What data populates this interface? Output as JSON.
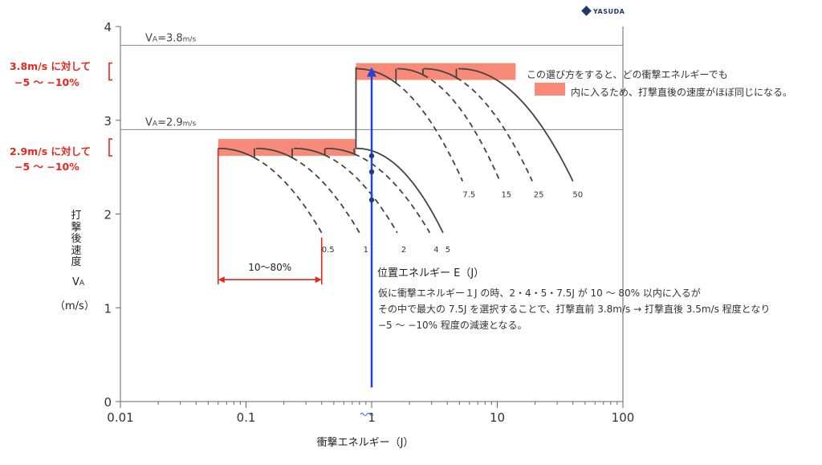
{
  "logo": {
    "text": "YASUDA"
  },
  "chart_data": {
    "type": "line",
    "title": "",
    "xlabel": "衝撃エネルギー（J）",
    "ylabel_vertical": "打撃後速度",
    "ylabel_symbol_main": "V",
    "ylabel_symbol_sub": "A",
    "ylabel_unit": "（m/s）",
    "x_scale": "log",
    "xlim": [
      0.01,
      100
    ],
    "ylim": [
      0,
      4
    ],
    "x_ticks": [
      {
        "value": 0.01,
        "label": "0.01"
      },
      {
        "value": 0.1,
        "label": "0.1"
      },
      {
        "value": 1,
        "label": "1"
      },
      {
        "value": 10,
        "label": "10"
      },
      {
        "value": 100,
        "label": "100"
      }
    ],
    "y_ticks": [
      0,
      1,
      2,
      3,
      4
    ],
    "reference_lines": [
      {
        "y": 3.8,
        "label_main": "V",
        "label_sub": "A",
        "label_eq": "=3.8",
        "label_unit": "m/s"
      },
      {
        "y": 2.9,
        "label_main": "V",
        "label_sub": "A",
        "label_eq": "=2.9",
        "label_unit": "m/s"
      }
    ],
    "bands": [
      {
        "y0": 3.43,
        "y1": 3.61,
        "x0": 0.75,
        "x1": 14,
        "color": "#fa8a78"
      },
      {
        "y0": 2.62,
        "y1": 2.8,
        "x0": 0.06,
        "x1": 0.75,
        "color": "#fa8a78"
      }
    ],
    "band_annotations": [
      {
        "line1": "3.8m/s に対して",
        "line2": "−5 〜 −10%"
      },
      {
        "line1": "2.9m/s に対して",
        "line2": "−5 〜 −10%"
      }
    ],
    "low_curves": {
      "v0": 2.7,
      "labels": [
        "0.5",
        "1",
        "2",
        "4",
        "5"
      ],
      "start_energy": [
        0.06,
        0.12,
        0.24,
        0.43,
        0.75
      ],
      "curve_end_energy": [
        0.4,
        0.8,
        1.6,
        2.9,
        3.7
      ],
      "end_velocity": 1.8
    },
    "high_curves": {
      "v0": 3.55,
      "labels": [
        "7.5",
        "15",
        "25",
        "50"
      ],
      "start_energy": [
        0.75,
        1.6,
        2.6,
        4.9
      ],
      "curve_end_energy": [
        5.3,
        10.5,
        19,
        40
      ],
      "end_velocity": 2.35
    },
    "potential_energy": {
      "x": 1,
      "y_bottom": 0.15,
      "y_top": 3.55,
      "label": "位置エネルギー E（J）",
      "color": "#2244dd",
      "dots_y": [
        2.62,
        2.45,
        2.15
      ]
    },
    "range_annotation": {
      "x0": 0.06,
      "x1": 0.4,
      "y": 1.3,
      "label": "10〜80%",
      "color": "#e8261a"
    },
    "notes": {
      "band_note_line1": "この選び方をすると、どの衝撃エネルギーでも",
      "band_note_line2": "内に入るため、打撃直後の速度がほぼ同じになる。",
      "explanation": [
        "仮に衝撃エネルギー１J の時、2・4・5・7.5J が 10 〜 80% 以内に入るが",
        "その中で最大の 7.5J を選択することで、打撃直前 3.8m/s → 打撃直後 3.5m/s 程度となり",
        "−5 〜 −10% 程度の減速となる。"
      ]
    }
  }
}
